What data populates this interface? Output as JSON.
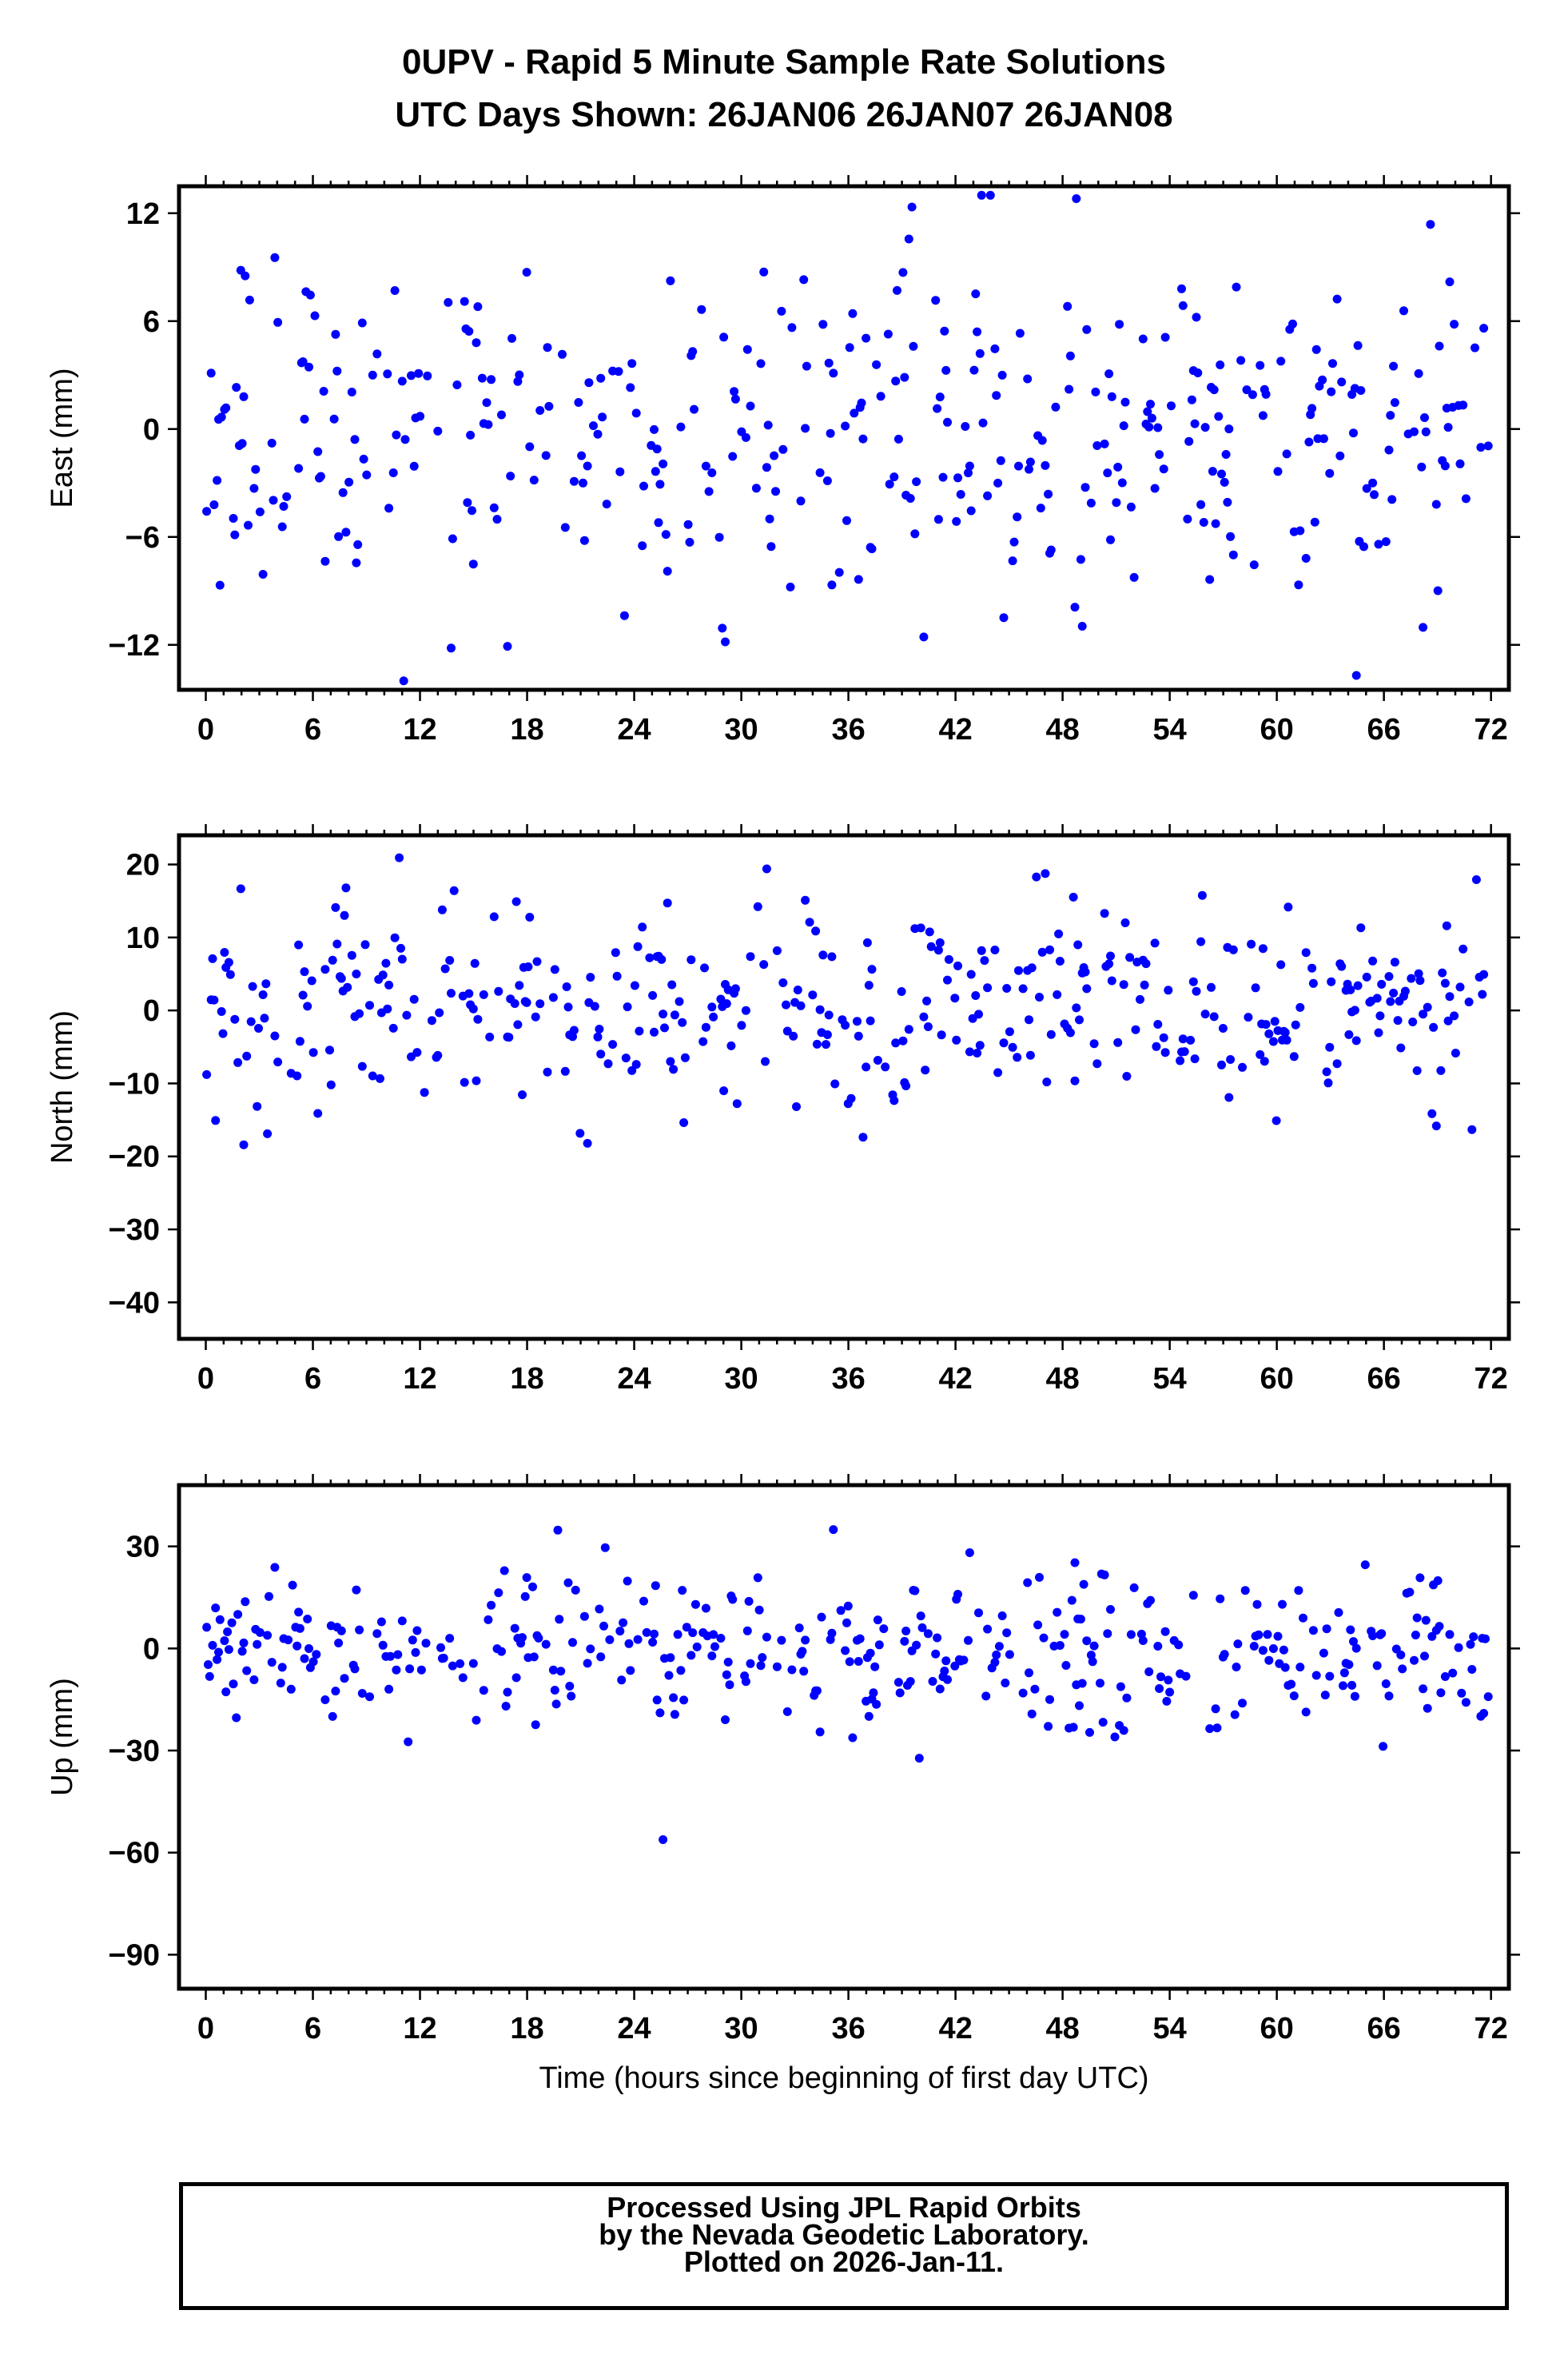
{
  "title_line1": "0UPV - Rapid 5 Minute Sample Rate Solutions",
  "title_line2": "UTC Days Shown:  26JAN06 26JAN07 26JAN08",
  "footer": {
    "line1": "Processed Using JPL Rapid Orbits",
    "line2": "by the Nevada Geodetic Laboratory.",
    "line3": "Plotted on 2026-Jan-11."
  },
  "colors": {
    "points": "#0000ff",
    "frame": "#000000",
    "background": "#ffffff"
  },
  "chart_data": [
    {
      "type": "scatter",
      "ylabel": "East (mm)",
      "xlabel": "",
      "xlim": [
        -1.5,
        73
      ],
      "ylim": [
        -14.5,
        13.5
      ],
      "xticks": [
        0,
        6,
        12,
        18,
        24,
        30,
        36,
        42,
        48,
        54,
        60,
        66,
        72
      ],
      "yticks": [
        -12,
        -6,
        0,
        6,
        12
      ],
      "grid": false
    },
    {
      "type": "scatter",
      "ylabel": "North (mm)",
      "xlabel": "",
      "xlim": [
        -1.5,
        73
      ],
      "ylim": [
        -45,
        24
      ],
      "xticks": [
        0,
        6,
        12,
        18,
        24,
        30,
        36,
        42,
        48,
        54,
        60,
        66,
        72
      ],
      "yticks": [
        -40,
        -30,
        -20,
        -10,
        0,
        10,
        20
      ],
      "grid": false
    },
    {
      "type": "scatter",
      "ylabel": "Up (mm)",
      "xlabel": "Time (hours since beginning of first day UTC)",
      "xlim": [
        -1.5,
        73
      ],
      "ylim": [
        -100,
        48
      ],
      "xticks": [
        0,
        6,
        12,
        18,
        24,
        30,
        36,
        42,
        48,
        54,
        60,
        66,
        72
      ],
      "yticks": [
        -90,
        -60,
        -30,
        0,
        30
      ],
      "grid": false
    }
  ]
}
